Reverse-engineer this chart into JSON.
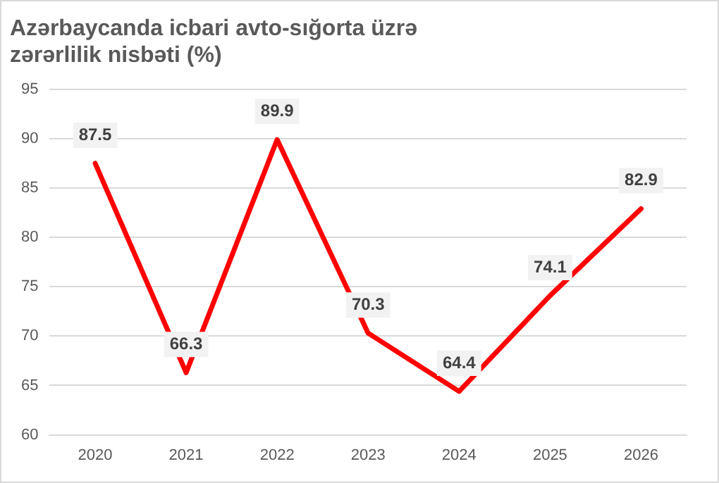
{
  "chart_data": {
    "type": "line",
    "title": "Azərbaycanda icbari avto-sığorta üzrə zərərlilik nisbəti (%)",
    "categories": [
      "2020",
      "2021",
      "2022",
      "2023",
      "2024",
      "2025",
      "2026"
    ],
    "series": [
      {
        "color": "#ff0000",
        "values": [
          87.5,
          66.3,
          89.9,
          70.3,
          64.4,
          74.1,
          82.9
        ]
      }
    ],
    "ylim": [
      60,
      95
    ],
    "yticks": [
      60,
      65,
      70,
      75,
      80,
      85,
      90,
      95
    ],
    "grid": "y",
    "legend": false,
    "marker": "none",
    "line_style": "solid",
    "data_labels": true
  }
}
